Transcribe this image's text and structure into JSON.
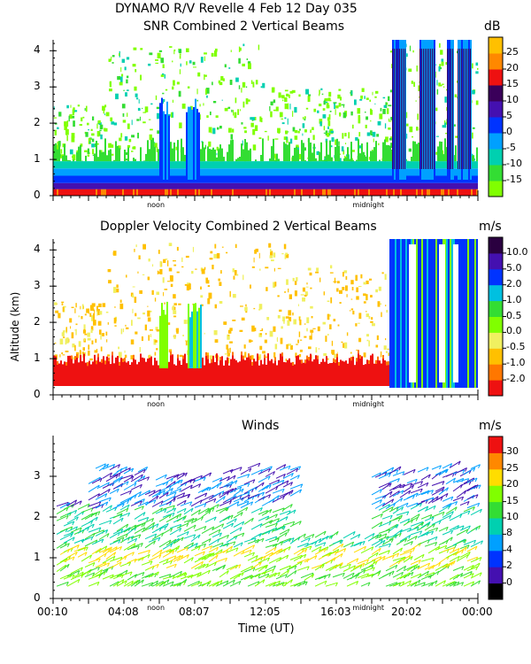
{
  "figure": {
    "title_line1": "DYNAMO R/V Revelle   4 Feb 12 Day 035",
    "xlabel": "Time (UT)",
    "ylabel": "Altitude (km)"
  },
  "chart_data": [
    {
      "type": "heatmap",
      "title": "SNR Combined 2 Vertical Beams",
      "unit": "dB",
      "ylim": [
        0,
        4.3
      ],
      "yticks": [
        "0",
        "1",
        "2",
        "3",
        "4"
      ],
      "marker_labels": [
        "noon",
        "midnight"
      ],
      "colorbar": {
        "ticks": [
          "-15",
          "-10",
          "-5",
          "0",
          "5",
          "10",
          "15",
          "20",
          "25"
        ],
        "colors": [
          "#80ff00",
          "#33dd33",
          "#00d0b0",
          "#00a0ff",
          "#0033ff",
          "#4410b0",
          "#3a005a",
          "#ee1111",
          "#ff8800",
          "#ffc000"
        ]
      }
    },
    {
      "type": "heatmap",
      "title": "Doppler Velocity Combined 2 Vertical Beams",
      "unit": "m/s",
      "ylim": [
        0,
        4.3
      ],
      "yticks": [
        "0",
        "1",
        "2",
        "3",
        "4"
      ],
      "marker_labels": [
        "noon",
        "midnight"
      ],
      "colorbar": {
        "ticks": [
          "-2.0",
          "-1.0",
          "-0.5",
          "0.0",
          "0.5",
          "1.0",
          "2.0",
          "5.0",
          "10.0"
        ],
        "colors": [
          "#ee1111",
          "#ff7700",
          "#ffc000",
          "#f0f060",
          "#80ff00",
          "#33dd33",
          "#00c0e0",
          "#0033ff",
          "#4410b0",
          "#2a0040"
        ]
      }
    },
    {
      "type": "scatter",
      "title": "Winds",
      "unit": "m/s",
      "ylim": [
        0,
        4
      ],
      "yticks": [
        "0",
        "1",
        "2",
        "3"
      ],
      "marker_labels": [
        "noon",
        "midnight"
      ],
      "x_tick_labels": [
        "00:10",
        "04:08",
        "08:07",
        "12:05",
        "16:03",
        "20:02",
        "00:00"
      ],
      "colorbar": {
        "ticks": [
          "0",
          "2",
          "4",
          "8",
          "10",
          "15",
          "20",
          "25",
          "30"
        ],
        "colors": [
          "#000000",
          "#4410b0",
          "#0033ff",
          "#00a0ff",
          "#00d0b0",
          "#33dd33",
          "#80ff00",
          "#ffdd00",
          "#ff8800",
          "#ee1111"
        ]
      }
    }
  ]
}
